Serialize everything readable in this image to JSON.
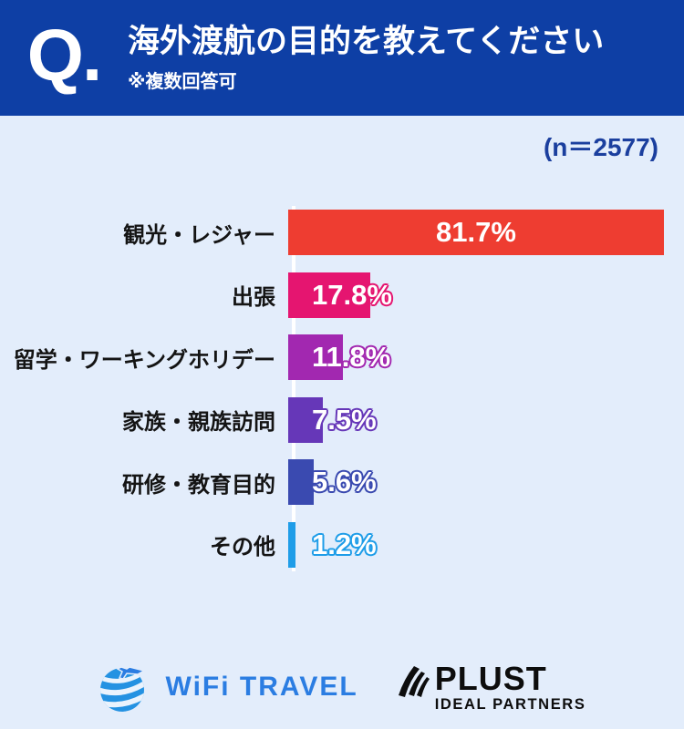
{
  "header": {
    "q_mark": "Q.",
    "title": "海外渡航の目的を教えてください",
    "note": "※複数回答可"
  },
  "sample_label": "(n＝2577)",
  "chart_data": {
    "type": "bar",
    "orientation": "horizontal",
    "title": "海外渡航の目的を教えてください",
    "subtitle": "※複数回答可",
    "sample_size": 2577,
    "sample_size_label": "(n＝2577)",
    "categories": [
      "観光・レジャー",
      "出張",
      "留学・ワーキングホリデー",
      "家族・親族訪問",
      "研修・教育目的",
      "その他"
    ],
    "values": [
      81.7,
      17.8,
      11.8,
      7.5,
      5.6,
      1.2
    ],
    "value_labels": [
      "81.7%",
      "17.8%",
      "11.8%",
      "7.5%",
      "5.6%",
      "1.2%"
    ],
    "bar_colors": [
      "#ee3d31",
      "#e51570",
      "#a228b0",
      "#6637b8",
      "#3a4ab0",
      "#1f9de8"
    ],
    "unit": "%",
    "xlim": [
      0,
      85
    ],
    "grid": false,
    "legend": false
  },
  "footer": {
    "wifi_travel": {
      "text": "WiFi TRAVEL",
      "brand_color": "#2b7de2",
      "icon": "globe-plane-icon"
    },
    "plust": {
      "name": "PLUST",
      "tagline": "IDEAL PARTNERS",
      "icon": "swoosh-icon"
    }
  },
  "colors": {
    "header_bg": "#0e3fa5",
    "page_bg": "#e3edfb",
    "header_text": "#ffffff",
    "n_label_text": "#1b3f9e",
    "category_text": "#141414",
    "axis_line": "#ffffff"
  }
}
